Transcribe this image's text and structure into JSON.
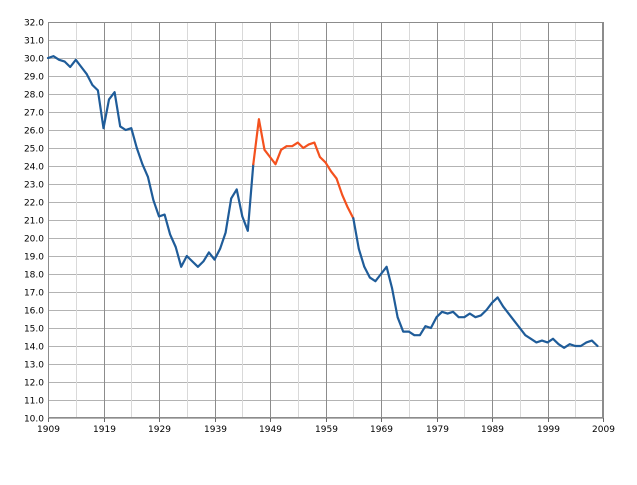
{
  "chart_data": {
    "type": "line",
    "title": "",
    "xlabel": "",
    "ylabel": "",
    "xlim": [
      1909,
      2009
    ],
    "ylim": [
      10,
      32
    ],
    "grid": true,
    "x_major_ticks": [
      1909,
      1919,
      1929,
      1939,
      1949,
      1959,
      1969,
      1979,
      1989,
      1999,
      2009
    ],
    "x_minor_ticks": [
      1914,
      1924,
      1934,
      1944,
      1954,
      1964,
      1974,
      1984,
      1994,
      2004
    ],
    "y_ticks": [
      "10.0",
      "11.0",
      "12.0",
      "13.0",
      "14.0",
      "15.0",
      "16.0",
      "17.0",
      "18.0",
      "19.0",
      "20.0",
      "21.0",
      "22.0",
      "23.0",
      "24.0",
      "25.0",
      "26.0",
      "27.0",
      "28.0",
      "29.0",
      "30.0",
      "31.0",
      "32.0"
    ],
    "series": [
      {
        "color": "#1f5c99",
        "x": [
          1909,
          1910,
          1911,
          1912,
          1913,
          1914,
          1915,
          1916,
          1917,
          1918,
          1919,
          1920,
          1921,
          1922,
          1923,
          1924,
          1925,
          1926,
          1927,
          1928,
          1929,
          1930,
          1931,
          1932,
          1933,
          1934,
          1935,
          1936,
          1937,
          1938,
          1939,
          1940,
          1941,
          1942,
          1943,
          1944,
          1945,
          1946
        ],
        "values": [
          30.0,
          30.1,
          29.9,
          29.8,
          29.5,
          29.9,
          29.5,
          29.1,
          28.5,
          28.2,
          26.1,
          27.7,
          28.1,
          26.2,
          26.0,
          26.1,
          25.0,
          24.1,
          23.4,
          22.1,
          21.2,
          21.3,
          20.2,
          19.5,
          18.4,
          19.0,
          18.7,
          18.4,
          18.7,
          19.2,
          18.8,
          19.4,
          20.3,
          22.2,
          22.7,
          21.2,
          20.4,
          24.1
        ]
      },
      {
        "color": "#f4511e",
        "x": [
          1946,
          1947,
          1948,
          1949,
          1950,
          1951,
          1952,
          1953,
          1954,
          1955,
          1956,
          1957,
          1958,
          1959,
          1960,
          1961,
          1962,
          1963,
          1964
        ],
        "values": [
          24.1,
          26.6,
          24.9,
          24.5,
          24.1,
          24.9,
          25.1,
          25.1,
          25.3,
          25.0,
          25.2,
          25.3,
          24.5,
          24.2,
          23.7,
          23.3,
          22.4,
          21.7,
          21.1
        ]
      },
      {
        "color": "#1f5c99",
        "x": [
          1964,
          1965,
          1966,
          1967,
          1968,
          1969,
          1970,
          1971,
          1972,
          1973,
          1974,
          1975,
          1976,
          1977,
          1978,
          1979,
          1980,
          1981,
          1982,
          1983,
          1984,
          1985,
          1986,
          1987,
          1988,
          1989,
          1990,
          1991,
          1992,
          1993,
          1994,
          1995,
          1996,
          1997,
          1998,
          1999,
          2000,
          2001,
          2002,
          2003,
          2004,
          2005,
          2006,
          2007,
          2008
        ],
        "values": [
          21.1,
          19.4,
          18.4,
          17.8,
          17.6,
          18.0,
          18.4,
          17.2,
          15.6,
          14.8,
          14.8,
          14.6,
          14.6,
          15.1,
          15.0,
          15.6,
          15.9,
          15.8,
          15.9,
          15.6,
          15.6,
          15.8,
          15.6,
          15.7,
          16.0,
          16.4,
          16.7,
          16.2,
          15.8,
          15.4,
          15.0,
          14.6,
          14.4,
          14.2,
          14.3,
          14.2,
          14.4,
          14.1,
          13.9,
          14.1,
          14.0,
          14.0,
          14.2,
          14.3,
          14.0
        ]
      }
    ]
  }
}
